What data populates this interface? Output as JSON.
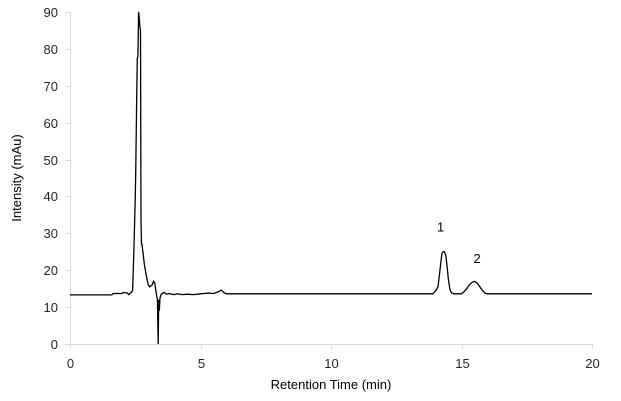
{
  "chart_data": {
    "type": "line",
    "title": "",
    "xlabel": "Retention Time (min)",
    "ylabel": "Intensity (mAu)",
    "xlim": [
      0,
      20
    ],
    "ylim": [
      0,
      90
    ],
    "xticks": [
      0,
      5,
      10,
      15,
      20
    ],
    "yticks": [
      0,
      10,
      20,
      30,
      40,
      50,
      60,
      70,
      80,
      90
    ],
    "grid": false,
    "legend": null,
    "series": [
      {
        "name": "Chromatogram",
        "color": "#000000",
        "x": [
          0.0,
          1.6,
          1.65,
          2.0,
          2.05,
          2.2,
          2.25,
          2.35,
          2.4,
          2.45,
          2.5,
          2.52,
          2.55,
          2.58,
          2.6,
          2.63,
          2.66,
          2.68,
          2.7,
          2.72,
          2.74,
          2.76,
          2.8,
          2.85,
          2.9,
          2.95,
          3.0,
          3.05,
          3.1,
          3.15,
          3.2,
          3.25,
          3.3,
          3.35,
          3.38,
          3.4,
          3.42,
          3.45,
          3.5,
          3.55,
          3.6,
          3.7,
          3.8,
          3.9,
          4.0,
          4.1,
          4.3,
          4.5,
          4.7,
          5.0,
          5.3,
          5.5,
          5.7,
          5.8,
          5.9,
          6.0,
          8.0,
          10.0,
          12.0,
          13.9,
          14.0,
          14.1,
          14.15,
          14.2,
          14.25,
          14.3,
          14.35,
          14.4,
          14.45,
          14.5,
          14.55,
          14.6,
          14.7,
          14.8,
          15.0,
          15.1,
          15.2,
          15.3,
          15.4,
          15.5,
          15.6,
          15.7,
          15.8,
          15.9,
          16.0,
          17.0,
          18.0,
          19.0,
          20.0
        ],
        "y": [
          13.3,
          13.3,
          13.7,
          13.7,
          14.0,
          13.8,
          13.4,
          14.0,
          14.5,
          25.5,
          40.0,
          48.0,
          65.0,
          77.5,
          78.0,
          90.0,
          88.0,
          86.0,
          85.0,
          33.5,
          27.0,
          27.0,
          24.5,
          21.5,
          19.5,
          17.5,
          16.0,
          15.5,
          15.8,
          16.0,
          17.0,
          16.5,
          14.0,
          12.0,
          0.0,
          12.0,
          9.0,
          12.5,
          13.5,
          13.8,
          14.0,
          13.5,
          13.7,
          13.5,
          13.4,
          13.6,
          13.4,
          13.5,
          13.4,
          13.6,
          13.8,
          13.7,
          14.2,
          14.6,
          13.9,
          13.6,
          13.6,
          13.6,
          13.6,
          13.6,
          14.3,
          15.5,
          18.5,
          21.5,
          24.5,
          25.0,
          25.0,
          24.0,
          21.0,
          17.5,
          15.0,
          14.0,
          13.6,
          13.6,
          13.6,
          14.2,
          15.0,
          16.0,
          16.7,
          17.0,
          16.5,
          15.5,
          14.5,
          13.8,
          13.6,
          13.6,
          13.6,
          13.6,
          13.6
        ]
      }
    ],
    "annotations": [
      {
        "text": "1",
        "x": 14.2,
        "y": 30.5
      },
      {
        "text": "2",
        "x": 15.6,
        "y": 22.0
      }
    ]
  },
  "axes": {
    "xlabel": "Retention Time (min)",
    "ylabel": "Intensity (mAu)",
    "xtick_labels": [
      "0",
      "5",
      "10",
      "15",
      "20"
    ],
    "ytick_labels": [
      "0",
      "10",
      "20",
      "30",
      "40",
      "50",
      "60",
      "70",
      "80",
      "90"
    ]
  },
  "annotations": {
    "peak1": "1",
    "peak2": "2"
  },
  "colors": {
    "trace": "#000000",
    "axis": "#d9d9d9",
    "text": "#262626"
  }
}
